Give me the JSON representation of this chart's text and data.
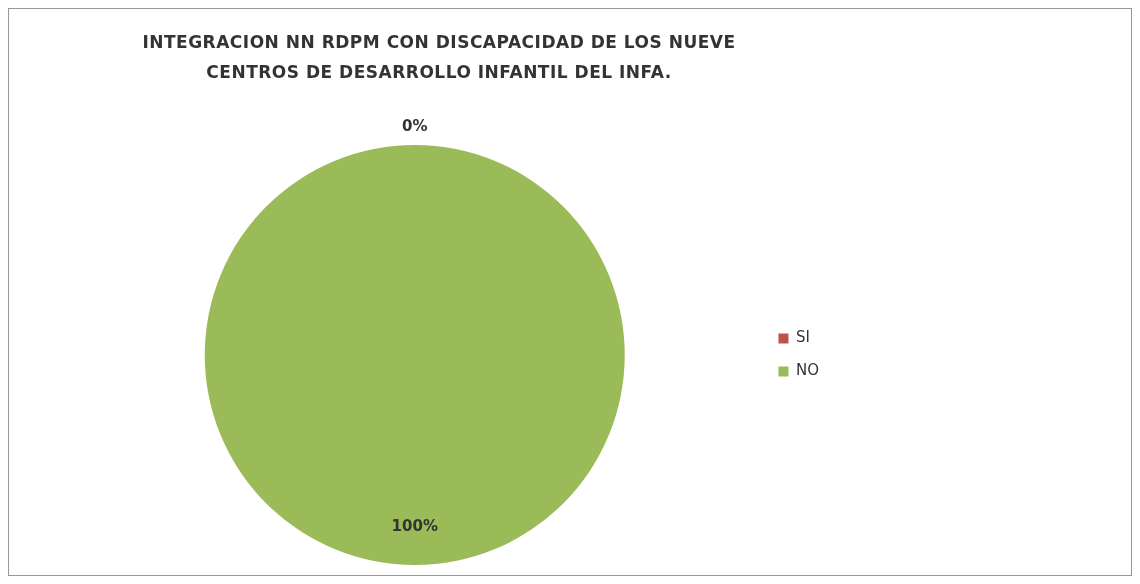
{
  "chart_data": {
    "type": "pie",
    "title": "INTEGRACION NN RDPM CON DISCAPACIDAD DE LOS NUEVE CENTROS  DE DESARROLLO INFANTIL DEL INFA.",
    "categories": [
      "SI",
      "NO"
    ],
    "values": [
      0,
      100
    ],
    "colors": [
      "#c0504d",
      "#9bbb59"
    ],
    "value_labels": [
      "0%",
      "100%"
    ],
    "legend": "right"
  }
}
